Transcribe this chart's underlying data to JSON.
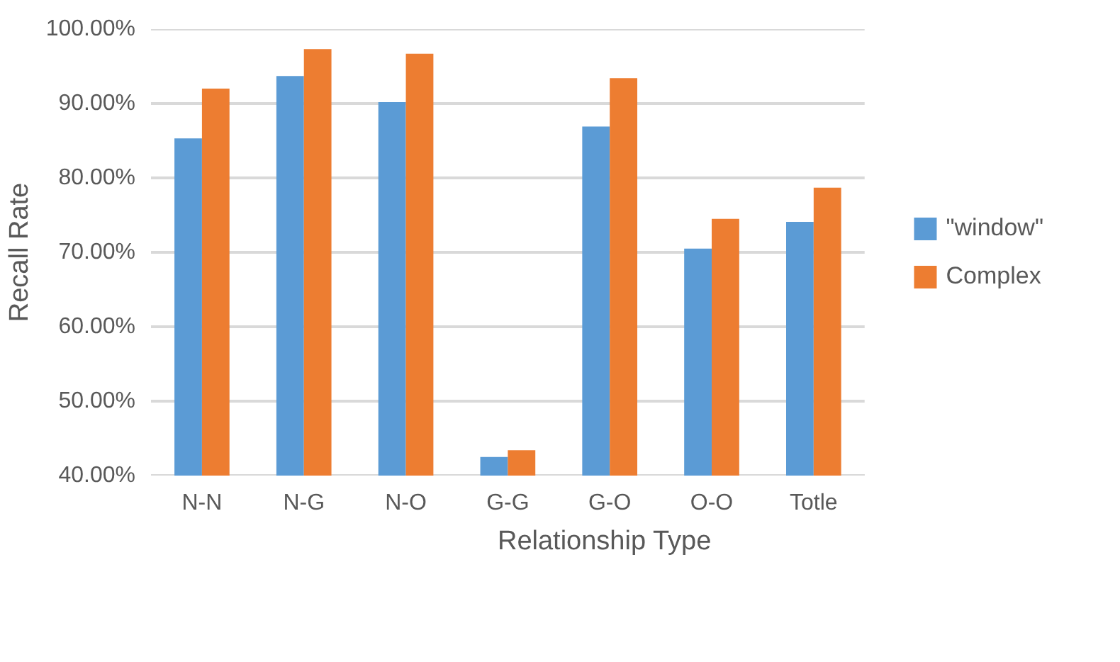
{
  "chart_data": {
    "type": "bar",
    "xlabel": "Relationship Type",
    "ylabel": "Recall Rate",
    "categories": [
      "N-N",
      "N-G",
      "N-O",
      "G-G",
      "G-O",
      "O-O",
      "Totle"
    ],
    "series": [
      {
        "name": "\"window\"",
        "color": "#5b9bd5",
        "values": [
          85.3,
          93.7,
          90.2,
          42.5,
          86.9,
          70.5,
          74.1
        ]
      },
      {
        "name": "Complex",
        "color": "#ed7d31",
        "values": [
          92.0,
          97.3,
          96.7,
          43.4,
          93.4,
          74.5,
          78.7
        ]
      }
    ],
    "ylim": [
      40,
      100
    ],
    "yticks": [
      {
        "value": 40,
        "label": "40.00%"
      },
      {
        "value": 50,
        "label": "50.00%"
      },
      {
        "value": 60,
        "label": "60.00%"
      },
      {
        "value": 70,
        "label": "70.00%"
      },
      {
        "value": 80,
        "label": "80.00%"
      },
      {
        "value": 90,
        "label": "90.00%"
      },
      {
        "value": 100,
        "label": "100.00%"
      }
    ],
    "grid": "y",
    "legend": "right"
  }
}
